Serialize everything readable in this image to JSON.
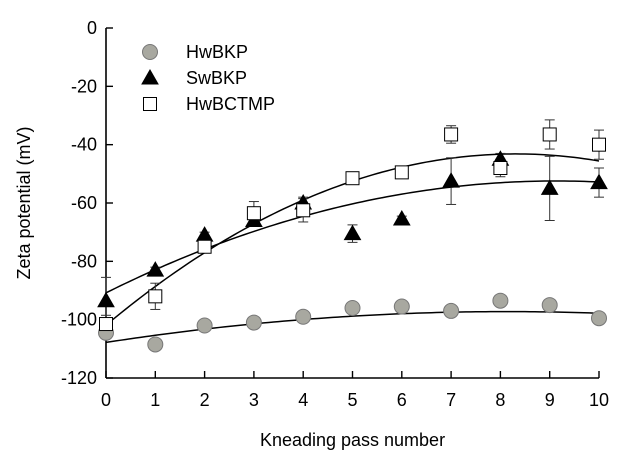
{
  "chart_data": {
    "type": "scatter",
    "title": "",
    "xlabel": "Kneading pass number",
    "ylabel": "Zeta potential (mV)",
    "xlim": [
      0,
      10
    ],
    "ylim": [
      -120,
      0
    ],
    "xticks": [
      0,
      1,
      2,
      3,
      4,
      5,
      6,
      7,
      8,
      9,
      10
    ],
    "yticks": [
      0,
      -20,
      -40,
      -60,
      -80,
      -100,
      -120
    ],
    "x_tick_labels": [
      "0",
      "1",
      "2",
      "3",
      "4",
      "5",
      "6",
      "7",
      "8",
      "9",
      "10"
    ],
    "y_tick_labels": [
      "0",
      "-20",
      "-40",
      "-60",
      "-80",
      "-100",
      "-120"
    ],
    "grid": false,
    "legend_position": "top-left",
    "series": [
      {
        "name": "HwBKP",
        "marker": "circle",
        "color": "#a8a8a0",
        "x": [
          0,
          1,
          2,
          3,
          4,
          5,
          6,
          7,
          8,
          9,
          10
        ],
        "y": [
          -104.5,
          -108.5,
          -102,
          -101,
          -99,
          -96,
          -95.5,
          -97,
          -93.5,
          -95,
          -99.5
        ],
        "error": [
          1,
          1,
          1,
          1,
          1,
          1,
          1,
          1,
          1,
          1,
          1
        ],
        "trend": [
          -107.8,
          2.6,
          -0.16
        ]
      },
      {
        "name": "SwBKP",
        "marker": "triangle",
        "color": "#000000",
        "x": [
          0,
          1,
          2,
          3,
          4,
          5,
          6,
          7,
          8,
          9,
          10
        ],
        "y": [
          -93.5,
          -83,
          -71,
          -66,
          -60,
          -70.5,
          -65.5,
          -52.5,
          -45,
          -55,
          -53
        ],
        "error": [
          8,
          1,
          1,
          1,
          2,
          3,
          1,
          8,
          2,
          11,
          5
        ],
        "trend": [
          -90.8,
          8.4,
          -0.46
        ]
      },
      {
        "name": "HwBCTMP",
        "marker": "square",
        "color": "#ffffff",
        "x": [
          0,
          1,
          2,
          3,
          4,
          5,
          6,
          7,
          8,
          9,
          10
        ],
        "y": [
          -101.5,
          -92,
          -75,
          -63.5,
          -62.5,
          -51.5,
          -49.5,
          -36.5,
          -48,
          -36.5,
          -40
        ],
        "error": [
          3,
          4.5,
          1,
          4,
          4,
          1,
          1,
          3,
          3,
          5,
          5
        ],
        "trend": [
          -101.9,
          14.13,
          -0.85
        ]
      }
    ]
  }
}
